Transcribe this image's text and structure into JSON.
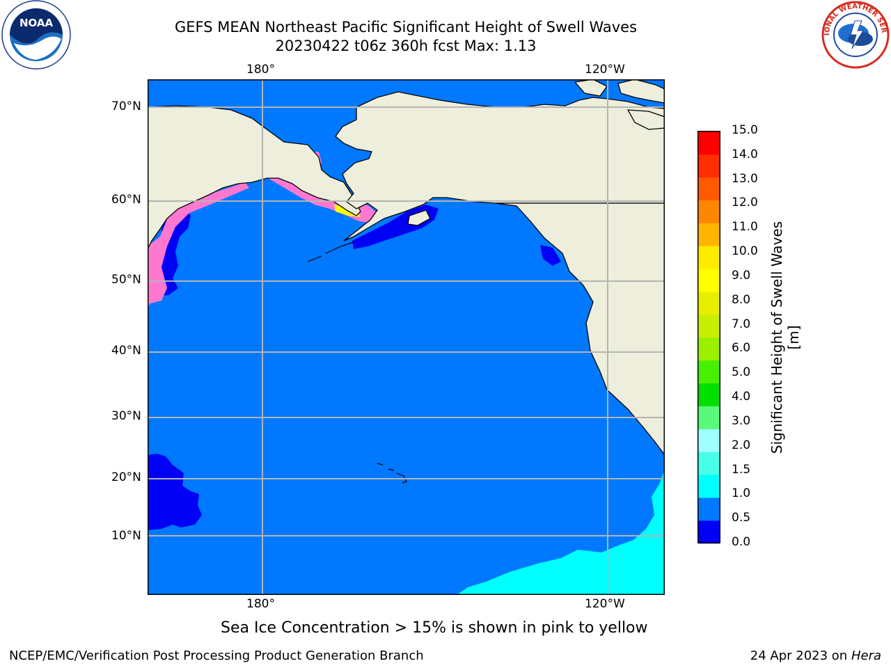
{
  "title_line1": "GEFS MEAN Northeast Pacific Significant Height of Swell Waves",
  "title_line2": "20230422 t06z 360h fcst   Max: 1.13",
  "lon_labels_top": [
    "180°",
    "120°W"
  ],
  "lon_labels_bottom": [
    "180°",
    "120°W"
  ],
  "lat_labels": [
    "70°N",
    "60°N",
    "50°N",
    "40°N",
    "30°N",
    "20°N",
    "10°N"
  ],
  "colorbar": {
    "title": "Significant Height of Swell Waves [m]",
    "ticks": [
      "15.0",
      "14.0",
      "13.0",
      "12.0",
      "11.0",
      "10.0",
      "9.0",
      "8.0",
      "7.0",
      "6.0",
      "5.0",
      "4.0",
      "3.0",
      "2.0",
      "1.5",
      "1.0",
      "0.5",
      "0.0"
    ],
    "colors": [
      "#0000f5",
      "#0078ff",
      "#00ffff",
      "#48ffe8",
      "#a0ffff",
      "#59f97c",
      "#00de00",
      "#49ef00",
      "#9def00",
      "#c9ef00",
      "#e6ef00",
      "#ffff00",
      "#ffeb00",
      "#ffb400",
      "#ff8700",
      "#ff5a00",
      "#ff2d00",
      "#ff0000"
    ]
  },
  "map_colors": {
    "land": "#eeeedc",
    "ocean": "#0078ff",
    "low": "#0000f5",
    "high": "#00ffff",
    "ice": "#ff78d0",
    "grid": "#b4b4b4"
  },
  "note": "Sea Ice Concentration > 15% is shown in pink to yellow",
  "footer_left": "NCEP/EMC/Verification Post Processing Product Generation Branch",
  "footer_right_prefix": "24 Apr 2023 on ",
  "footer_right_italic": "Hera",
  "noaa_logo_text": "NOAA",
  "nws_logo_text": "NATIONAL WEATHER SERVICE"
}
